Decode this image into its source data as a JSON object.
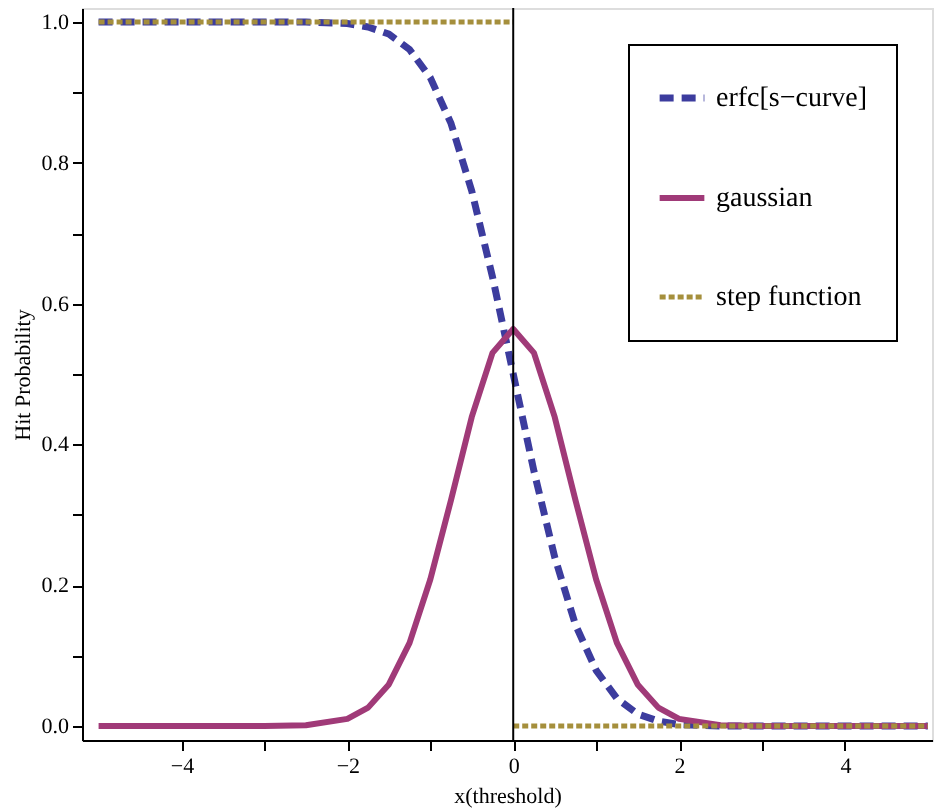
{
  "chart_data": {
    "type": "line",
    "xlabel": "x(threshold)",
    "ylabel": "Hit Probability",
    "xlim": [
      -5.2,
      5.05
    ],
    "ylim": [
      -0.02,
      1.02
    ],
    "xticks": [
      {
        "value": -4,
        "label": "−4"
      },
      {
        "value": -3,
        "label": null
      },
      {
        "value": -2,
        "label": "−2"
      },
      {
        "value": -1,
        "label": null
      },
      0,
      {
        "value": 1,
        "label": null
      },
      2,
      {
        "value": 3,
        "label": null
      },
      4
    ],
    "yticks": [
      {
        "value": 0,
        "label": "0.0"
      },
      {
        "value": 0.1,
        "label": null
      },
      0.2,
      {
        "value": 0.3,
        "label": null
      },
      0.4,
      {
        "value": 0.5,
        "label": null
      },
      0.6,
      {
        "value": 0.7,
        "label": null
      },
      0.8,
      {
        "value": 0.9,
        "label": null
      },
      {
        "value": 1,
        "label": "1.0"
      }
    ],
    "grid": false,
    "legend": "top right",
    "ref_lines": [
      {
        "axis": "x",
        "value": 0,
        "color": "#000000",
        "line_style": "solid"
      }
    ],
    "series": [
      {
        "name": "erfc[s−curve]",
        "color": "#3c3c9e",
        "line_style": "dashed",
        "x": [
          -5,
          -3,
          -2.5,
          -2,
          -1.75,
          -1.5,
          -1.25,
          -1,
          -0.75,
          -0.5,
          -0.25,
          0,
          0.25,
          0.5,
          0.75,
          1,
          1.25,
          1.5,
          1.75,
          2,
          2.5,
          3,
          5
        ],
        "values": [
          1,
          1,
          1,
          0.998,
          0.993,
          0.983,
          0.961,
          0.921,
          0.856,
          0.76,
          0.638,
          0.5,
          0.362,
          0.24,
          0.144,
          0.079,
          0.039,
          0.017,
          0.007,
          0.002,
          0,
          0,
          0
        ]
      },
      {
        "name": "gaussian",
        "color": "#a03a78",
        "line_style": "solid",
        "x": [
          -5,
          -3,
          -2.5,
          -2,
          -1.75,
          -1.5,
          -1.25,
          -1,
          -0.75,
          -0.5,
          -0.25,
          0,
          0.25,
          0.5,
          0.75,
          1,
          1.25,
          1.5,
          1.75,
          2,
          2.5,
          3,
          5
        ],
        "values": [
          0,
          0,
          0.001,
          0.01,
          0.026,
          0.059,
          0.118,
          0.208,
          0.321,
          0.439,
          0.53,
          0.564,
          0.53,
          0.439,
          0.321,
          0.208,
          0.118,
          0.059,
          0.026,
          0.01,
          0.001,
          0,
          0
        ]
      },
      {
        "name": "step function",
        "color": "#a58f3c",
        "line_style": "dotted",
        "x": [
          -5,
          0,
          null,
          0,
          5
        ],
        "values": [
          1,
          1,
          null,
          0,
          0
        ]
      }
    ]
  }
}
